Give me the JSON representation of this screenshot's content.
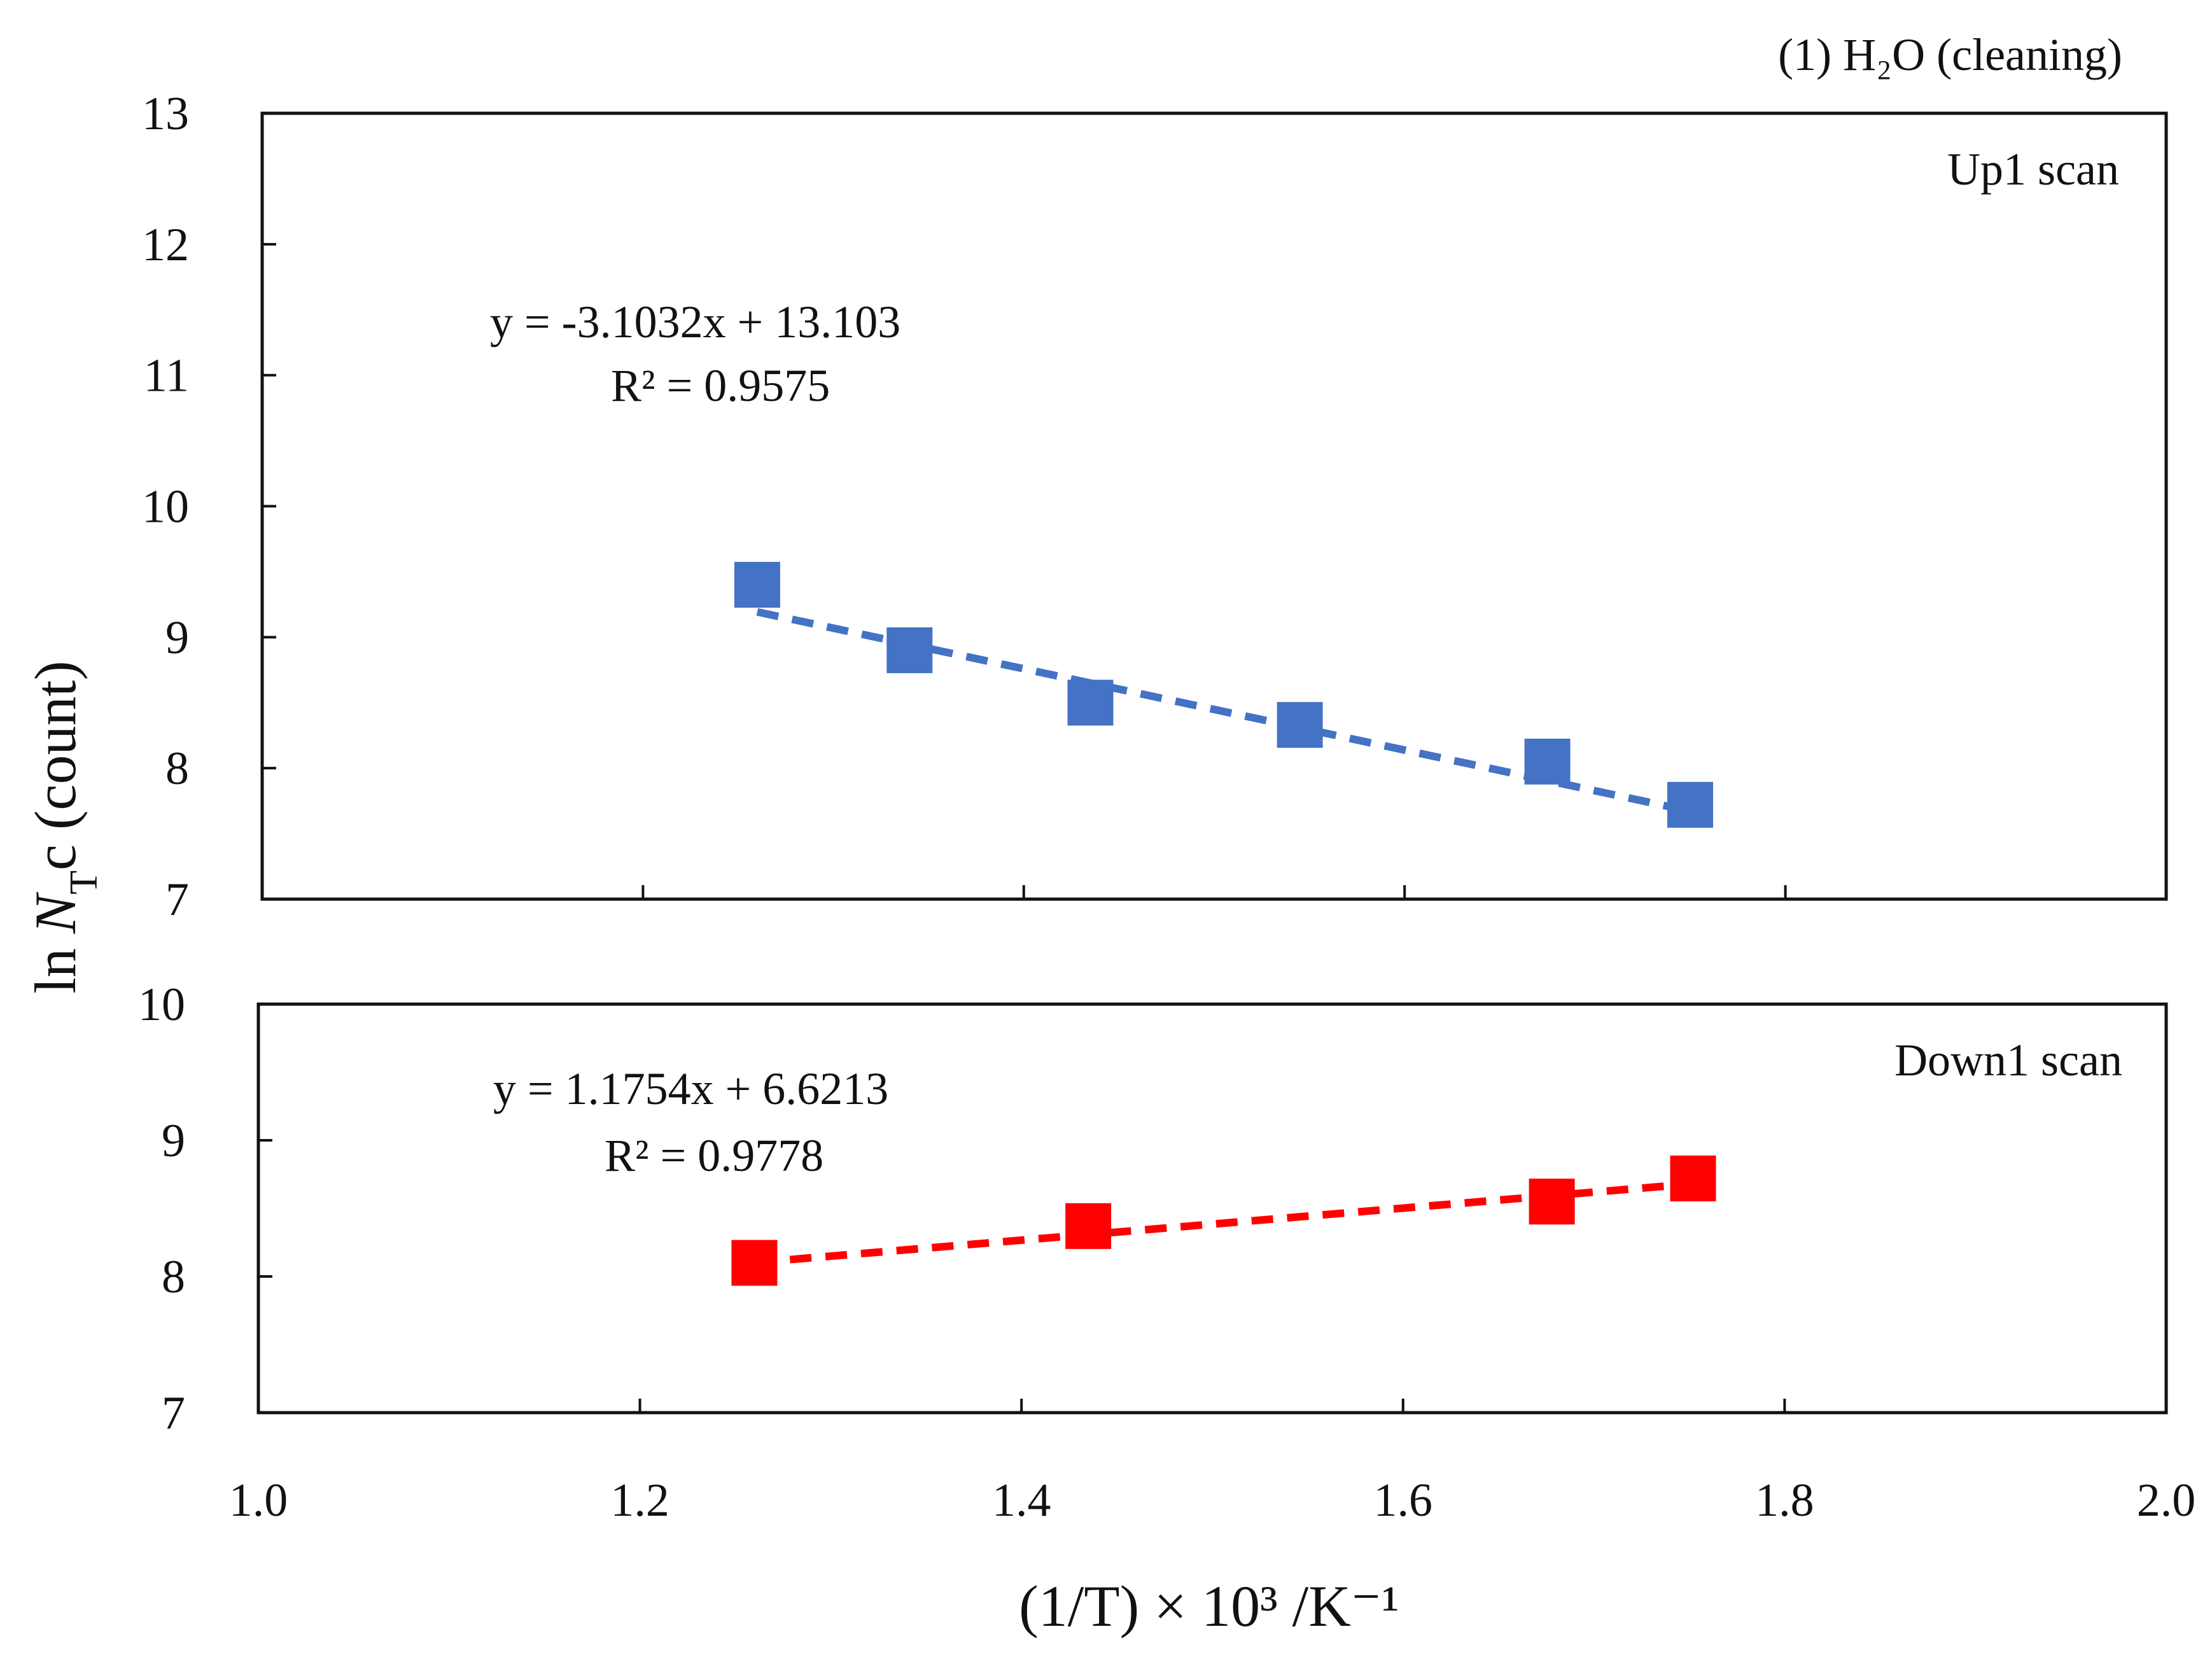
{
  "figure": {
    "header_label": "(1) H₂O (cleaning)",
    "y_axis_label_prefix": "ln ",
    "y_axis_label_symbol": "N",
    "y_axis_label_subscript": "T",
    "y_axis_label_suffix": "c (count)",
    "x_axis_label": "(1/T) × 10³ /K⁻¹"
  },
  "chart_data": [
    {
      "type": "scatter",
      "name": "Up1 scan",
      "panel_label": "Up1 scan",
      "color": "#4472c4",
      "x": [
        1.26,
        1.34,
        1.435,
        1.545,
        1.675,
        1.75
      ],
      "y": [
        9.4,
        8.9,
        8.5,
        8.33,
        8.05,
        7.72
      ],
      "trendline": {
        "slope": -3.1032,
        "intercept": 13.103,
        "equation": "y = -3.1032x + 13.103",
        "r_squared": "R² = 0.9575",
        "style": "dashed"
      },
      "xlim": [
        1.0,
        2.0
      ],
      "ylim": [
        7,
        13
      ],
      "yticks": [
        7,
        8,
        9,
        10,
        11,
        12,
        13
      ],
      "ytick_labels": [
        "7",
        "8",
        "9",
        "10",
        "11",
        "12",
        "13"
      ],
      "xticks": [
        1.2,
        1.4,
        1.6,
        1.8
      ],
      "grid": false
    },
    {
      "type": "scatter",
      "name": "Down1 scan",
      "panel_label": "Down1 scan",
      "color": "#ff0000",
      "x": [
        1.26,
        1.435,
        1.678,
        1.752
      ],
      "y": [
        8.1,
        8.37,
        8.55,
        8.72
      ],
      "trendline": {
        "slope": 1.1754,
        "intercept": 6.6213,
        "equation": "y = 1.1754x + 6.6213",
        "r_squared": "R² = 0.9778",
        "style": "dashed"
      },
      "xlim": [
        1.0,
        2.0
      ],
      "ylim": [
        7,
        10
      ],
      "yticks": [
        7,
        8,
        9,
        10
      ],
      "ytick_labels": [
        "7",
        "8",
        "9",
        "10"
      ],
      "xticks": [
        1.2,
        1.4,
        1.6,
        1.8
      ],
      "xtick_labels": [
        "1.0",
        "1.2",
        "1.4",
        "1.6",
        "1.8",
        "2.0"
      ],
      "xtick_values": [
        1.0,
        1.2,
        1.4,
        1.6,
        1.8,
        2.0
      ],
      "grid": false
    }
  ]
}
